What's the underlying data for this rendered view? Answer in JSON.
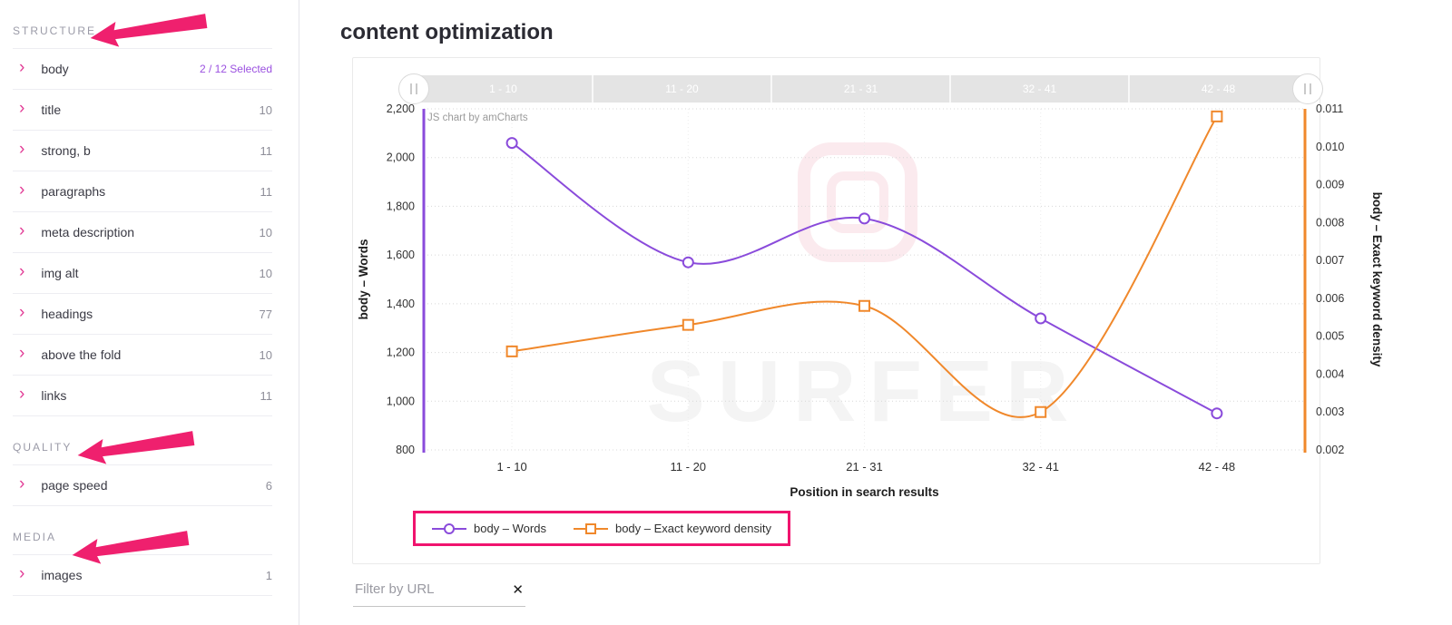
{
  "main": {
    "title": "content optimization"
  },
  "sidebar": {
    "sections": [
      {
        "label": "STRUCTURE",
        "items": [
          {
            "label": "body",
            "value": "2 / 12 Selected",
            "value_style": "selected"
          },
          {
            "label": "title",
            "value": "10"
          },
          {
            "label": "strong, b",
            "value": "11"
          },
          {
            "label": "paragraphs",
            "value": "11"
          },
          {
            "label": "meta description",
            "value": "10"
          },
          {
            "label": "img alt",
            "value": "10"
          },
          {
            "label": "headings",
            "value": "77"
          },
          {
            "label": "above the fold",
            "value": "10"
          },
          {
            "label": "links",
            "value": "11"
          }
        ]
      },
      {
        "label": "QUALITY",
        "items": [
          {
            "label": "page speed",
            "value": "6"
          }
        ]
      },
      {
        "label": "MEDIA",
        "items": [
          {
            "label": "images",
            "value": "1"
          }
        ]
      }
    ]
  },
  "chart_data": {
    "type": "line",
    "credit": "JS chart by amCharts",
    "watermark": "SURFER",
    "categories": [
      "1 - 10",
      "11 - 20",
      "21 - 31",
      "32 - 41",
      "42 - 48"
    ],
    "xlabel": "Position in search results",
    "series": [
      {
        "name": "body – Words",
        "axis": "left",
        "color": "#8a4bdb",
        "marker": "circle",
        "values": [
          2060,
          1570,
          1750,
          1340,
          950
        ]
      },
      {
        "name": "body – Exact keyword density",
        "axis": "right",
        "color": "#f0882b",
        "marker": "square",
        "values": [
          0.0046,
          0.0053,
          0.0058,
          0.003,
          0.0108
        ]
      }
    ],
    "left_axis": {
      "label": "body – Words",
      "min": 800,
      "max": 2200,
      "step": 200,
      "ticks": [
        "800",
        "1,000",
        "1,200",
        "1,400",
        "1,600",
        "1,800",
        "2,000",
        "2,200"
      ]
    },
    "right_axis": {
      "label": "body – Exact keyword density",
      "min": 0.002,
      "max": 0.011,
      "step": 0.001,
      "ticks": [
        "0.002",
        "0.003",
        "0.004",
        "0.005",
        "0.006",
        "0.007",
        "0.008",
        "0.009",
        "0.010",
        "0.011"
      ]
    },
    "legend_position": "bottom",
    "grid": true
  },
  "filter": {
    "placeholder": "Filter by URL",
    "clear_icon": "✕"
  },
  "colors": {
    "accent_pink": "#ef206e",
    "legend_border": "#f0146e",
    "chevron_pink": "#e23d96",
    "selected_purple": "#9b51e0",
    "purple_series": "#8a4bdb",
    "orange_series": "#f0882b",
    "scrollbar_gray": "#e4e4e4"
  }
}
